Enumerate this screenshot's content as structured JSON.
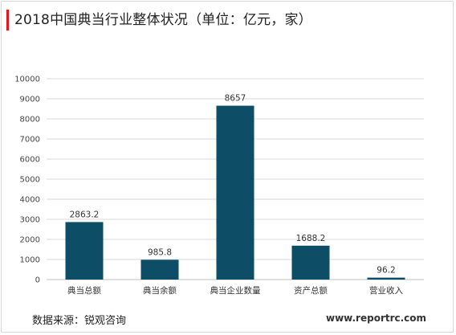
{
  "title": "2018中国典当行业整体状况（单位：亿元，家）",
  "source": "数据来源：锐观咨询",
  "watermark": "www.reportrc.com",
  "colors": {
    "bar": "#0e4d66",
    "accent": "#e0191b",
    "grid": "#d9d9d9"
  },
  "chart_data": {
    "type": "bar",
    "categories": [
      "典当总额",
      "典当余额",
      "典当企业数量",
      "资产总额",
      "营业收入"
    ],
    "values": [
      2863.2,
      985.8,
      8657,
      1688.2,
      96.2
    ],
    "data_labels": [
      "2863.2",
      "985.8",
      "8657",
      "1688.2",
      "96.2"
    ],
    "ylim": [
      0,
      10000
    ],
    "yticks": [
      0,
      1000,
      2000,
      3000,
      4000,
      5000,
      6000,
      7000,
      8000,
      9000,
      10000
    ],
    "grid": true,
    "legend": "none"
  }
}
